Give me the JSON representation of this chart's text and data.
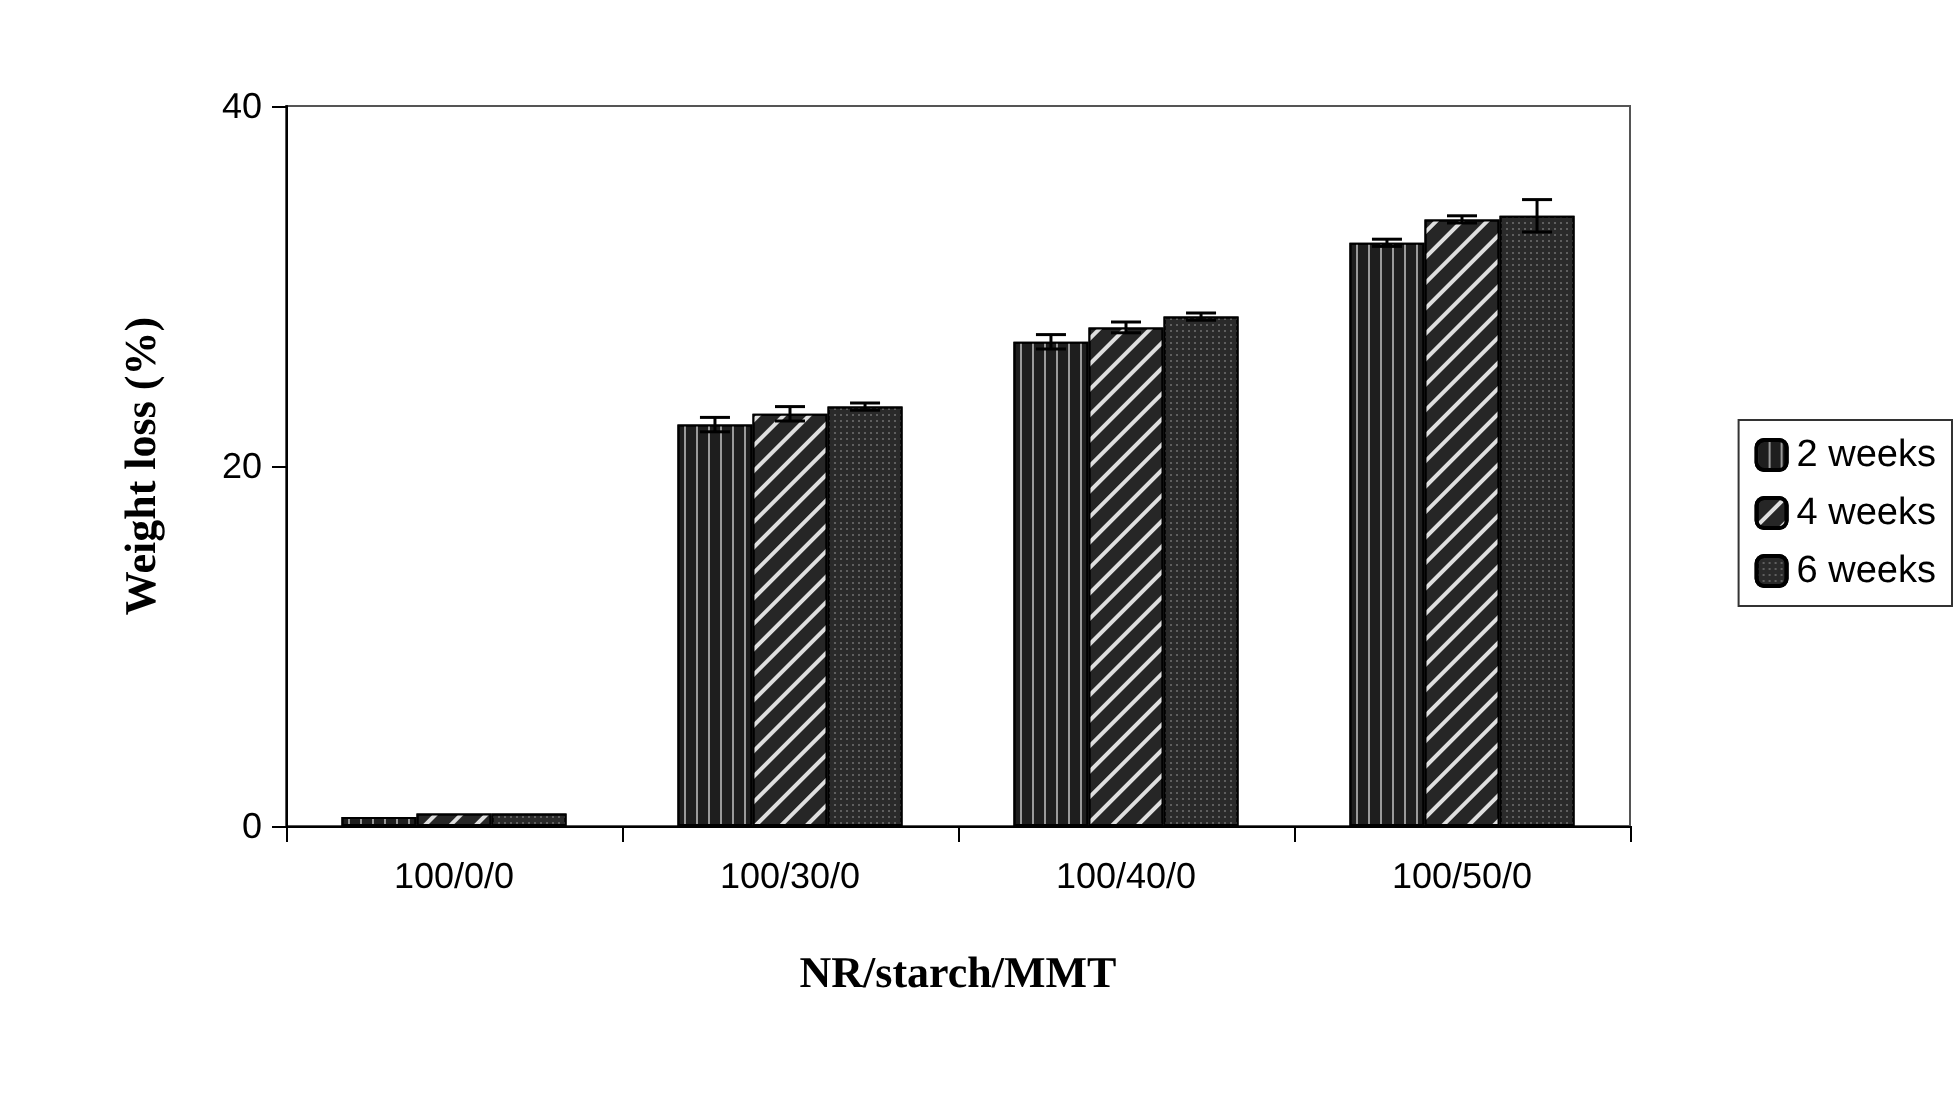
{
  "chart_data": {
    "type": "bar",
    "xlabel": "NR/starch/MMT",
    "ylabel": "Weight loss (%)",
    "categories": [
      "100/0/0",
      "100/30/0",
      "100/40/0",
      "100/50/0"
    ],
    "series": [
      {
        "name": "2 weeks",
        "color": "#1e1e1e",
        "values": [
          0.5,
          22.3,
          26.9,
          32.4
        ],
        "errors": [
          null,
          0.4,
          0.4,
          0.2
        ]
      },
      {
        "name": "4 weeks",
        "color": "#262626",
        "values": [
          0.7,
          22.9,
          27.7,
          33.7
        ],
        "errors": [
          null,
          0.4,
          0.3,
          0.2
        ]
      },
      {
        "name": "6 weeks",
        "color": "#2a2a2a",
        "values": [
          0.7,
          23.3,
          28.3,
          33.9
        ],
        "errors": [
          null,
          0.2,
          0.2,
          0.9
        ]
      }
    ],
    "ylim": [
      0,
      40
    ],
    "yticks": [
      0,
      20,
      40
    ],
    "grid": false,
    "legend": "right"
  }
}
